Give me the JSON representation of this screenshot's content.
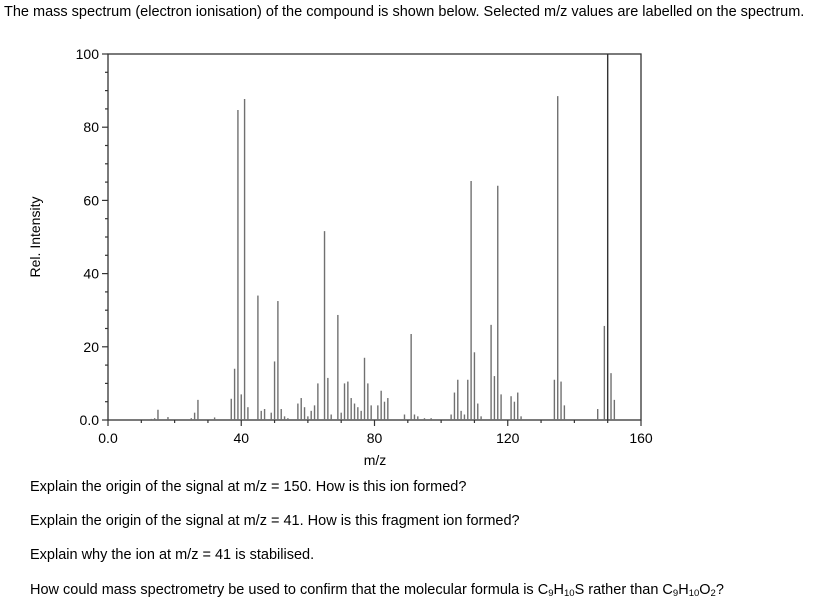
{
  "intro_text": "The mass spectrum (electron ionisation) of the compound is shown below. Selected m/z values are labelled on the spectrum.",
  "questions": {
    "q1": "Explain the origin of the signal at m/z = 150. How is this ion formed?",
    "q2": "Explain the origin of the signal at m/z = 41. How is this fragment ion formed?",
    "q3": "Explain why the ion at m/z = 41 is stabilised.",
    "q4": {
      "prefix": "How could mass spectrometry be used to confirm that the molecular formula is ",
      "formula_a": {
        "c": "C",
        "c_n": "9",
        "h": "H",
        "h_n": "10",
        "rest": "S"
      },
      "middle": " rather than ",
      "formula_b": {
        "c": "C",
        "c_n": "9",
        "h": "H",
        "h_n": "10",
        "o": "O",
        "o_n": "2"
      },
      "suffix": "?"
    }
  },
  "chart_data": {
    "type": "bar",
    "subtype": "stick-spectrum",
    "title": "",
    "xlabel": "m/z",
    "ylabel": "Rel. Intensity",
    "xlim": [
      0,
      160
    ],
    "ylim": [
      0,
      100
    ],
    "x_ticks": [
      0,
      40,
      80,
      120,
      160
    ],
    "x_tick_labels": [
      "0.0",
      "40",
      "80",
      "120",
      "160"
    ],
    "x_minor_step": 10,
    "y_ticks": [
      0,
      20,
      40,
      60,
      80,
      100
    ],
    "y_tick_labels": [
      "0.0",
      "20",
      "40",
      "60",
      "80",
      "100"
    ],
    "y_minor_step": 5,
    "grid": false,
    "legend": null,
    "bar_color": "#707070",
    "axis_color": "#333333",
    "peaks": [
      {
        "mz": 13,
        "intensity": 0.3
      },
      {
        "mz": 14,
        "intensity": 0.5
      },
      {
        "mz": 15,
        "intensity": 2.8
      },
      {
        "mz": 18,
        "intensity": 0.8
      },
      {
        "mz": 25,
        "intensity": 0.5
      },
      {
        "mz": 26,
        "intensity": 2.0
      },
      {
        "mz": 27,
        "intensity": 5.5
      },
      {
        "mz": 32,
        "intensity": 0.7
      },
      {
        "mz": 37,
        "intensity": 5.8
      },
      {
        "mz": 38,
        "intensity": 14.0
      },
      {
        "mz": 39,
        "intensity": 84.7
      },
      {
        "mz": 40,
        "intensity": 7.0
      },
      {
        "mz": 41,
        "intensity": 87.7
      },
      {
        "mz": 42,
        "intensity": 3.5
      },
      {
        "mz": 45,
        "intensity": 34.0
      },
      {
        "mz": 46,
        "intensity": 2.5
      },
      {
        "mz": 47,
        "intensity": 3.0
      },
      {
        "mz": 49,
        "intensity": 2.0
      },
      {
        "mz": 50,
        "intensity": 16.0
      },
      {
        "mz": 51,
        "intensity": 32.5
      },
      {
        "mz": 52,
        "intensity": 3.0
      },
      {
        "mz": 53,
        "intensity": 1.0
      },
      {
        "mz": 54,
        "intensity": 0.5
      },
      {
        "mz": 57,
        "intensity": 4.5
      },
      {
        "mz": 58,
        "intensity": 6.0
      },
      {
        "mz": 59,
        "intensity": 3.5
      },
      {
        "mz": 60,
        "intensity": 1.0
      },
      {
        "mz": 61,
        "intensity": 2.5
      },
      {
        "mz": 62,
        "intensity": 4.0
      },
      {
        "mz": 63,
        "intensity": 10.0
      },
      {
        "mz": 65,
        "intensity": 51.6
      },
      {
        "mz": 66,
        "intensity": 11.5
      },
      {
        "mz": 67,
        "intensity": 1.5
      },
      {
        "mz": 69,
        "intensity": 28.7
      },
      {
        "mz": 70,
        "intensity": 2.0
      },
      {
        "mz": 71,
        "intensity": 10.0
      },
      {
        "mz": 72,
        "intensity": 10.5
      },
      {
        "mz": 73,
        "intensity": 6.0
      },
      {
        "mz": 74,
        "intensity": 4.5
      },
      {
        "mz": 75,
        "intensity": 3.5
      },
      {
        "mz": 76,
        "intensity": 2.5
      },
      {
        "mz": 77,
        "intensity": 17.0
      },
      {
        "mz": 78,
        "intensity": 10.0
      },
      {
        "mz": 79,
        "intensity": 4.0
      },
      {
        "mz": 81,
        "intensity": 4.0
      },
      {
        "mz": 82,
        "intensity": 8.0
      },
      {
        "mz": 83,
        "intensity": 5.0
      },
      {
        "mz": 84,
        "intensity": 6.0
      },
      {
        "mz": 89,
        "intensity": 1.5
      },
      {
        "mz": 91,
        "intensity": 23.5
      },
      {
        "mz": 92,
        "intensity": 1.5
      },
      {
        "mz": 93,
        "intensity": 1.0
      },
      {
        "mz": 95,
        "intensity": 0.5
      },
      {
        "mz": 97,
        "intensity": 0.5
      },
      {
        "mz": 103,
        "intensity": 1.5
      },
      {
        "mz": 104,
        "intensity": 7.5
      },
      {
        "mz": 105,
        "intensity": 11.0
      },
      {
        "mz": 106,
        "intensity": 2.5
      },
      {
        "mz": 107,
        "intensity": 1.5
      },
      {
        "mz": 108,
        "intensity": 11.0
      },
      {
        "mz": 109,
        "intensity": 65.3
      },
      {
        "mz": 110,
        "intensity": 18.5
      },
      {
        "mz": 111,
        "intensity": 4.5
      },
      {
        "mz": 112,
        "intensity": 1.0
      },
      {
        "mz": 115,
        "intensity": 26.0
      },
      {
        "mz": 116,
        "intensity": 12.0
      },
      {
        "mz": 117,
        "intensity": 64.0
      },
      {
        "mz": 118,
        "intensity": 7.0
      },
      {
        "mz": 121,
        "intensity": 6.5
      },
      {
        "mz": 122,
        "intensity": 5.0
      },
      {
        "mz": 123,
        "intensity": 7.5
      },
      {
        "mz": 124,
        "intensity": 1.0
      },
      {
        "mz": 134,
        "intensity": 11.0
      },
      {
        "mz": 135,
        "intensity": 88.5
      },
      {
        "mz": 136,
        "intensity": 10.5
      },
      {
        "mz": 137,
        "intensity": 4.0
      },
      {
        "mz": 147,
        "intensity": 3.0
      },
      {
        "mz": 149,
        "intensity": 25.7
      },
      {
        "mz": 150,
        "intensity": 100.0
      },
      {
        "mz": 151,
        "intensity": 12.8
      },
      {
        "mz": 152,
        "intensity": 5.5
      }
    ]
  }
}
